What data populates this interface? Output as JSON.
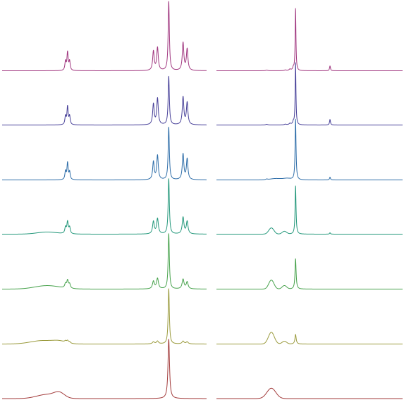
{
  "figure": {
    "background": "#ffffff",
    "panel_count": 2,
    "trace_count": 7
  },
  "chart_data": [
    {
      "type": "line",
      "panel": "left",
      "title": "",
      "xlabel": "",
      "ylabel": "",
      "grid": false,
      "legend": "none",
      "x_range": [
        0,
        100
      ],
      "series_style": "stacked",
      "series": [
        {
          "color": "#a0367f",
          "offset": 6,
          "lines": [
            {
              "center": 31,
              "height": 13,
              "width": 0.35
            },
            {
              "center": 32,
              "height": 26,
              "width": 0.35
            },
            {
              "center": 33,
              "height": 13,
              "width": 0.35
            },
            {
              "center": 74,
              "height": 28,
              "width": 0.45
            },
            {
              "center": 76,
              "height": 33,
              "width": 0.45
            },
            {
              "center": 81.5,
              "height": 100,
              "width": 0.35
            },
            {
              "center": 88.5,
              "height": 40,
              "width": 0.45
            },
            {
              "center": 90.5,
              "height": 31,
              "width": 0.45
            }
          ]
        },
        {
          "color": "#463f98",
          "offset": 5,
          "lines": [
            {
              "center": 31,
              "height": 12,
              "width": 0.35
            },
            {
              "center": 32,
              "height": 26,
              "width": 0.35
            },
            {
              "center": 33,
              "height": 12,
              "width": 0.35
            },
            {
              "center": 74,
              "height": 30,
              "width": 0.45
            },
            {
              "center": 76,
              "height": 38,
              "width": 0.45
            },
            {
              "center": 81.5,
              "height": 70,
              "width": 0.35
            },
            {
              "center": 88.5,
              "height": 40,
              "width": 0.45
            },
            {
              "center": 90.5,
              "height": 32,
              "width": 0.45
            }
          ]
        },
        {
          "color": "#2c6ca8",
          "offset": 4,
          "lines": [
            {
              "center": 31,
              "height": 12,
              "width": 0.35
            },
            {
              "center": 32,
              "height": 24,
              "width": 0.35
            },
            {
              "center": 33,
              "height": 11,
              "width": 0.35
            },
            {
              "center": 74,
              "height": 26,
              "width": 0.45
            },
            {
              "center": 76,
              "height": 35,
              "width": 0.45
            },
            {
              "center": 81.5,
              "height": 76,
              "width": 0.35
            },
            {
              "center": 88.5,
              "height": 37,
              "width": 0.45
            },
            {
              "center": 90.5,
              "height": 30,
              "width": 0.45
            }
          ]
        },
        {
          "color": "#22977a",
          "offset": 3,
          "bumps": [
            {
              "center": 22,
              "height": 3,
              "width": 5
            }
          ],
          "lines": [
            {
              "center": 31,
              "height": 9,
              "width": 0.4
            },
            {
              "center": 32,
              "height": 17,
              "width": 0.4
            },
            {
              "center": 33,
              "height": 9,
              "width": 0.4
            },
            {
              "center": 74,
              "height": 18,
              "width": 0.5
            },
            {
              "center": 76,
              "height": 22,
              "width": 0.5
            },
            {
              "center": 81.5,
              "height": 80,
              "width": 0.35
            },
            {
              "center": 88.5,
              "height": 24,
              "width": 0.5
            },
            {
              "center": 90.5,
              "height": 18,
              "width": 0.5
            }
          ]
        },
        {
          "color": "#45a14a",
          "offset": 2,
          "bumps": [
            {
              "center": 22,
              "height": 5,
              "width": 6
            }
          ],
          "lines": [
            {
              "center": 31,
              "height": 6,
              "width": 0.45
            },
            {
              "center": 32,
              "height": 11,
              "width": 0.45
            },
            {
              "center": 33,
              "height": 6,
              "width": 0.45
            },
            {
              "center": 74,
              "height": 11,
              "width": 0.55
            },
            {
              "center": 76,
              "height": 15,
              "width": 0.55
            },
            {
              "center": 81.5,
              "height": 80,
              "width": 0.35
            },
            {
              "center": 88.5,
              "height": 14,
              "width": 0.55
            },
            {
              "center": 90.5,
              "height": 10,
              "width": 0.55
            }
          ]
        },
        {
          "color": "#9a9a3c",
          "offset": 1,
          "bumps": [
            {
              "center": 20,
              "height": 5,
              "width": 6
            },
            {
              "center": 28,
              "height": 3,
              "width": 3
            }
          ],
          "lines": [
            {
              "center": 31,
              "height": 2,
              "width": 0.5
            },
            {
              "center": 32,
              "height": 3,
              "width": 0.5
            },
            {
              "center": 33,
              "height": 2,
              "width": 0.5
            },
            {
              "center": 74,
              "height": 3,
              "width": 0.6
            },
            {
              "center": 76,
              "height": 4,
              "width": 0.6
            },
            {
              "center": 81.5,
              "height": 80,
              "width": 0.35
            },
            {
              "center": 88.5,
              "height": 4,
              "width": 0.6
            },
            {
              "center": 90.5,
              "height": 3,
              "width": 0.6
            }
          ]
        },
        {
          "color": "#a23a3a",
          "offset": 0,
          "bumps": [
            {
              "center": 22,
              "height": 6,
              "width": 5
            },
            {
              "center": 28,
              "height": 7,
              "width": 2.5
            }
          ],
          "lines": [
            {
              "center": 81.5,
              "height": 86,
              "width": 0.45
            }
          ]
        }
      ]
    },
    {
      "type": "line",
      "panel": "right",
      "title": "",
      "xlabel": "",
      "ylabel": "",
      "grid": false,
      "legend": "none",
      "x_range": [
        0,
        100
      ],
      "series_style": "stacked",
      "series": [
        {
          "color": "#a0367f",
          "offset": 6,
          "lines": [
            {
              "center": 27,
              "height": 1,
              "width": 0.6
            },
            {
              "center": 37,
              "height": 1,
              "width": 0.6
            },
            {
              "center": 39.5,
              "height": 2,
              "width": 0.6
            },
            {
              "center": 41.3,
              "height": 4,
              "width": 0.4
            },
            {
              "center": 42.5,
              "height": 90,
              "width": 0.25
            },
            {
              "center": 61,
              "height": 7,
              "width": 0.3
            }
          ]
        },
        {
          "color": "#463f98",
          "offset": 5,
          "lines": [
            {
              "center": 27,
              "height": 1,
              "width": 0.6
            },
            {
              "center": 37,
              "height": 1,
              "width": 0.6
            },
            {
              "center": 39.5,
              "height": 2,
              "width": 0.6
            },
            {
              "center": 41.3,
              "height": 4,
              "width": 0.4
            },
            {
              "center": 42.5,
              "height": 90,
              "width": 0.25
            },
            {
              "center": 61,
              "height": 8,
              "width": 0.3
            }
          ]
        },
        {
          "color": "#2c6ca8",
          "offset": 4,
          "bumps": [
            {
              "center": 32,
              "height": 2,
              "width": 3
            },
            {
              "center": 38,
              "height": 2,
              "width": 2
            }
          ],
          "lines": [
            {
              "center": 27,
              "height": 1,
              "width": 0.6
            },
            {
              "center": 42.5,
              "height": 88,
              "width": 0.3
            },
            {
              "center": 61,
              "height": 4,
              "width": 0.3
            }
          ]
        },
        {
          "color": "#22977a",
          "offset": 3,
          "bumps": [
            {
              "center": 29.5,
              "height": 9,
              "width": 1.4
            },
            {
              "center": 36.5,
              "height": 4,
              "width": 1.2
            }
          ],
          "lines": [
            {
              "center": 42.5,
              "height": 70,
              "width": 0.3
            },
            {
              "center": 61,
              "height": 2,
              "width": 0.3
            }
          ]
        },
        {
          "color": "#45a14a",
          "offset": 2,
          "bumps": [
            {
              "center": 29.5,
              "height": 13,
              "width": 1.4
            },
            {
              "center": 36.5,
              "height": 5,
              "width": 1.2
            }
          ],
          "lines": [
            {
              "center": 42.5,
              "height": 44,
              "width": 0.35
            }
          ]
        },
        {
          "color": "#9a9a3c",
          "offset": 1,
          "bumps": [
            {
              "center": 29.5,
              "height": 17,
              "width": 1.6
            },
            {
              "center": 36.5,
              "height": 4,
              "width": 1.2
            }
          ],
          "lines": [
            {
              "center": 42.5,
              "height": 14,
              "width": 0.4
            }
          ]
        },
        {
          "color": "#a23a3a",
          "offset": 0,
          "bumps": [
            {
              "center": 29.5,
              "height": 15,
              "width": 2.4
            }
          ]
        }
      ]
    }
  ]
}
